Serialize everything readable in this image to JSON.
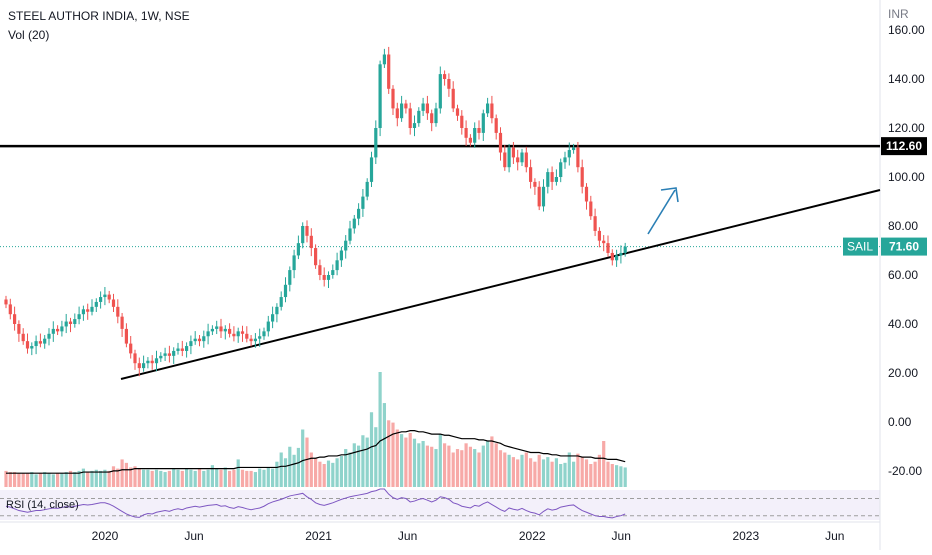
{
  "header": {
    "title": "STEEL AUTHOR INDIA, 1W, NSE",
    "volume_label": "Vol (20)",
    "rsi_label": "RSI (14, close)"
  },
  "colors": {
    "up": "#26a69a",
    "down": "#ef5350",
    "volume_up": "#8fd3cb",
    "volume_down": "#f7a9a7",
    "last_price_tag": "#26a69a",
    "resistance_tag": "#000000",
    "arrow": "#2a7fb5",
    "rsi_line": "#7e57c2"
  },
  "chart_data": {
    "type": "candlestick",
    "currency_label": "INR",
    "y_ticks": [
      "160.00",
      "140.00",
      "120.00",
      "100.00",
      "80.00",
      "60.00",
      "40.00",
      "20.00",
      "0.00",
      "-20.00"
    ],
    "y_range": [
      -20,
      160
    ],
    "x_labels": [
      "2020",
      "Jun",
      "2021",
      "Jun",
      "2022",
      "Jun",
      "2023",
      "Jun"
    ],
    "x_label_dates": [
      "2020-01",
      "2020-06",
      "2021-01",
      "2021-06",
      "2022-01",
      "2022-06",
      "2023-01",
      "2023-06"
    ],
    "close": [
      48,
      44,
      40,
      36,
      33,
      30,
      31,
      33,
      32,
      34,
      36,
      38,
      37,
      39,
      41,
      40,
      42,
      44,
      46,
      45,
      47,
      49,
      51,
      52,
      50,
      47,
      43,
      38,
      32,
      28,
      24,
      22,
      24,
      25,
      24,
      26,
      27,
      28,
      27,
      29,
      30,
      29,
      31,
      33,
      34,
      33,
      35,
      37,
      38,
      39,
      37,
      38,
      36,
      35,
      37,
      36,
      34,
      33,
      34,
      35,
      37,
      41,
      44,
      47,
      51,
      56,
      62,
      68,
      73,
      80,
      76,
      71,
      64,
      60,
      58,
      60,
      62,
      66,
      70,
      74,
      79,
      83,
      87,
      92,
      98,
      108,
      120,
      146,
      150,
      136,
      128,
      124,
      130,
      128,
      120,
      122,
      127,
      130,
      126,
      122,
      128,
      142,
      140,
      136,
      128,
      125,
      120,
      116,
      114,
      120,
      118,
      126,
      130,
      124,
      118,
      110,
      104,
      112,
      108,
      106,
      110,
      104,
      98,
      96,
      88,
      96,
      102,
      98,
      100,
      106,
      108,
      111,
      112,
      104,
      96,
      90,
      84,
      78,
      74,
      73,
      69,
      66,
      68,
      69,
      71.6
    ],
    "volume": [
      14,
      13,
      13,
      12,
      12,
      12,
      13,
      11,
      12,
      13,
      12,
      11,
      12,
      12,
      13,
      14,
      13,
      14,
      16,
      13,
      14,
      15,
      14,
      15,
      14,
      18,
      16,
      24,
      21,
      17,
      18,
      16,
      15,
      15,
      14,
      15,
      14,
      13,
      14,
      16,
      15,
      14,
      16,
      15,
      14,
      16,
      14,
      15,
      19,
      16,
      15,
      17,
      14,
      15,
      24,
      15,
      14,
      14,
      13,
      16,
      15,
      17,
      16,
      22,
      30,
      25,
      35,
      28,
      34,
      50,
      43,
      30,
      25,
      22,
      20,
      23,
      21,
      25,
      27,
      33,
      30,
      38,
      36,
      45,
      43,
      65,
      52,
      100,
      73,
      58,
      56,
      50,
      46,
      43,
      47,
      42,
      38,
      40,
      36,
      35,
      33,
      46,
      38,
      36,
      30,
      33,
      32,
      38,
      35,
      33,
      30,
      36,
      40,
      44,
      38,
      32,
      30,
      28,
      26,
      24,
      28,
      30,
      25,
      22,
      28,
      24,
      26,
      22,
      25,
      20,
      21,
      30,
      22,
      29,
      26,
      24,
      20,
      22,
      28,
      40,
      22,
      20,
      19,
      18,
      17
    ],
    "volume_ma": [
      12,
      12,
      12,
      12,
      12,
      12,
      12,
      12,
      12,
      12,
      12,
      12,
      12,
      12,
      12,
      12,
      12,
      12,
      13,
      13,
      13,
      13,
      13,
      13,
      13,
      14,
      14,
      15,
      15,
      15,
      16,
      16,
      16,
      16,
      16,
      16,
      16,
      16,
      16,
      16,
      16,
      16,
      16,
      16,
      16,
      16,
      16,
      16,
      16,
      16,
      16,
      16,
      16,
      16,
      17,
      17,
      17,
      17,
      17,
      17,
      17,
      17,
      17,
      17,
      18,
      18,
      19,
      20,
      21,
      23,
      24,
      25,
      25,
      26,
      26,
      27,
      27,
      27,
      28,
      28,
      29,
      30,
      31,
      32,
      33,
      35,
      36,
      40,
      42,
      44,
      46,
      47,
      48,
      48,
      49,
      49,
      48,
      48,
      47,
      46,
      46,
      46,
      45,
      45,
      44,
      43,
      42,
      42,
      42,
      42,
      41,
      41,
      40,
      40,
      39,
      38,
      36,
      35,
      34,
      33,
      32,
      31,
      30,
      30,
      30,
      29,
      29,
      28,
      28,
      27,
      27,
      27,
      27,
      27,
      26,
      26,
      26,
      25,
      25,
      25,
      24,
      24,
      24,
      23,
      22
    ],
    "rsi": [
      52,
      50,
      46,
      42,
      40,
      38,
      40,
      42,
      42,
      44,
      46,
      48,
      47,
      49,
      51,
      50,
      52,
      54,
      56,
      55,
      56,
      58,
      60,
      60,
      57,
      52,
      46,
      40,
      34,
      30,
      27,
      26,
      32,
      35,
      34,
      38,
      40,
      42,
      40,
      44,
      46,
      44,
      48,
      50,
      52,
      50,
      52,
      54,
      55,
      56,
      52,
      53,
      49,
      47,
      51,
      49,
      46,
      44,
      46,
      48,
      52,
      58,
      62,
      65,
      68,
      72,
      76,
      78,
      80,
      82,
      74,
      68,
      60,
      56,
      54,
      57,
      60,
      64,
      68,
      71,
      74,
      76,
      78,
      80,
      82,
      86,
      88,
      92,
      92,
      80,
      72,
      68,
      72,
      70,
      62,
      64,
      68,
      70,
      66,
      62,
      66,
      74,
      72,
      68,
      60,
      57,
      52,
      50,
      48,
      54,
      52,
      58,
      62,
      56,
      50,
      44,
      40,
      48,
      45,
      43,
      47,
      42,
      38,
      36,
      32,
      40,
      46,
      43,
      45,
      50,
      52,
      54,
      55,
      48,
      42,
      38,
      34,
      30,
      28,
      28,
      26,
      25,
      28,
      30,
      34
    ],
    "resistance_level": 112.6,
    "last_price": 71.6,
    "symbol_tag": "SAIL",
    "last_price_label": "71.60",
    "resistance_label": "112.60",
    "rsi_levels": [
      70,
      30
    ]
  }
}
